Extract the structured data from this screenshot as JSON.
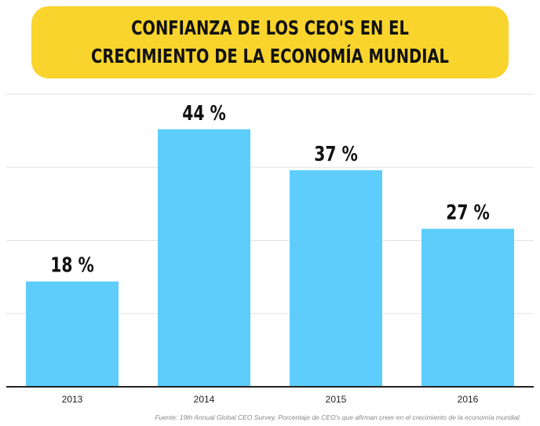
{
  "title": "Confianza de los CEO's en el crecimiento de la economía mundial",
  "source_note": "Fuente: 19th Annual Global CEO Survey. Porcentaje de CEO's que afirman creer en el crecimiento de la economía mundial.",
  "colors": {
    "bar": "#5ecdfc",
    "title_bg": "#f9d42c",
    "grid": "#e2e2e2",
    "axis": "#222222"
  },
  "chart_data": {
    "type": "bar",
    "title": "Confianza de los CEO's en el crecimiento de la economía mundial",
    "categories": [
      "2013",
      "2014",
      "2015",
      "2016"
    ],
    "values": [
      18,
      44,
      37,
      27
    ],
    "value_labels": [
      "18 %",
      "44 %",
      "37 %",
      "27 %"
    ],
    "xlabel": "",
    "ylabel": "",
    "ylim": [
      0,
      50
    ],
    "grid": true,
    "unit": "%"
  }
}
